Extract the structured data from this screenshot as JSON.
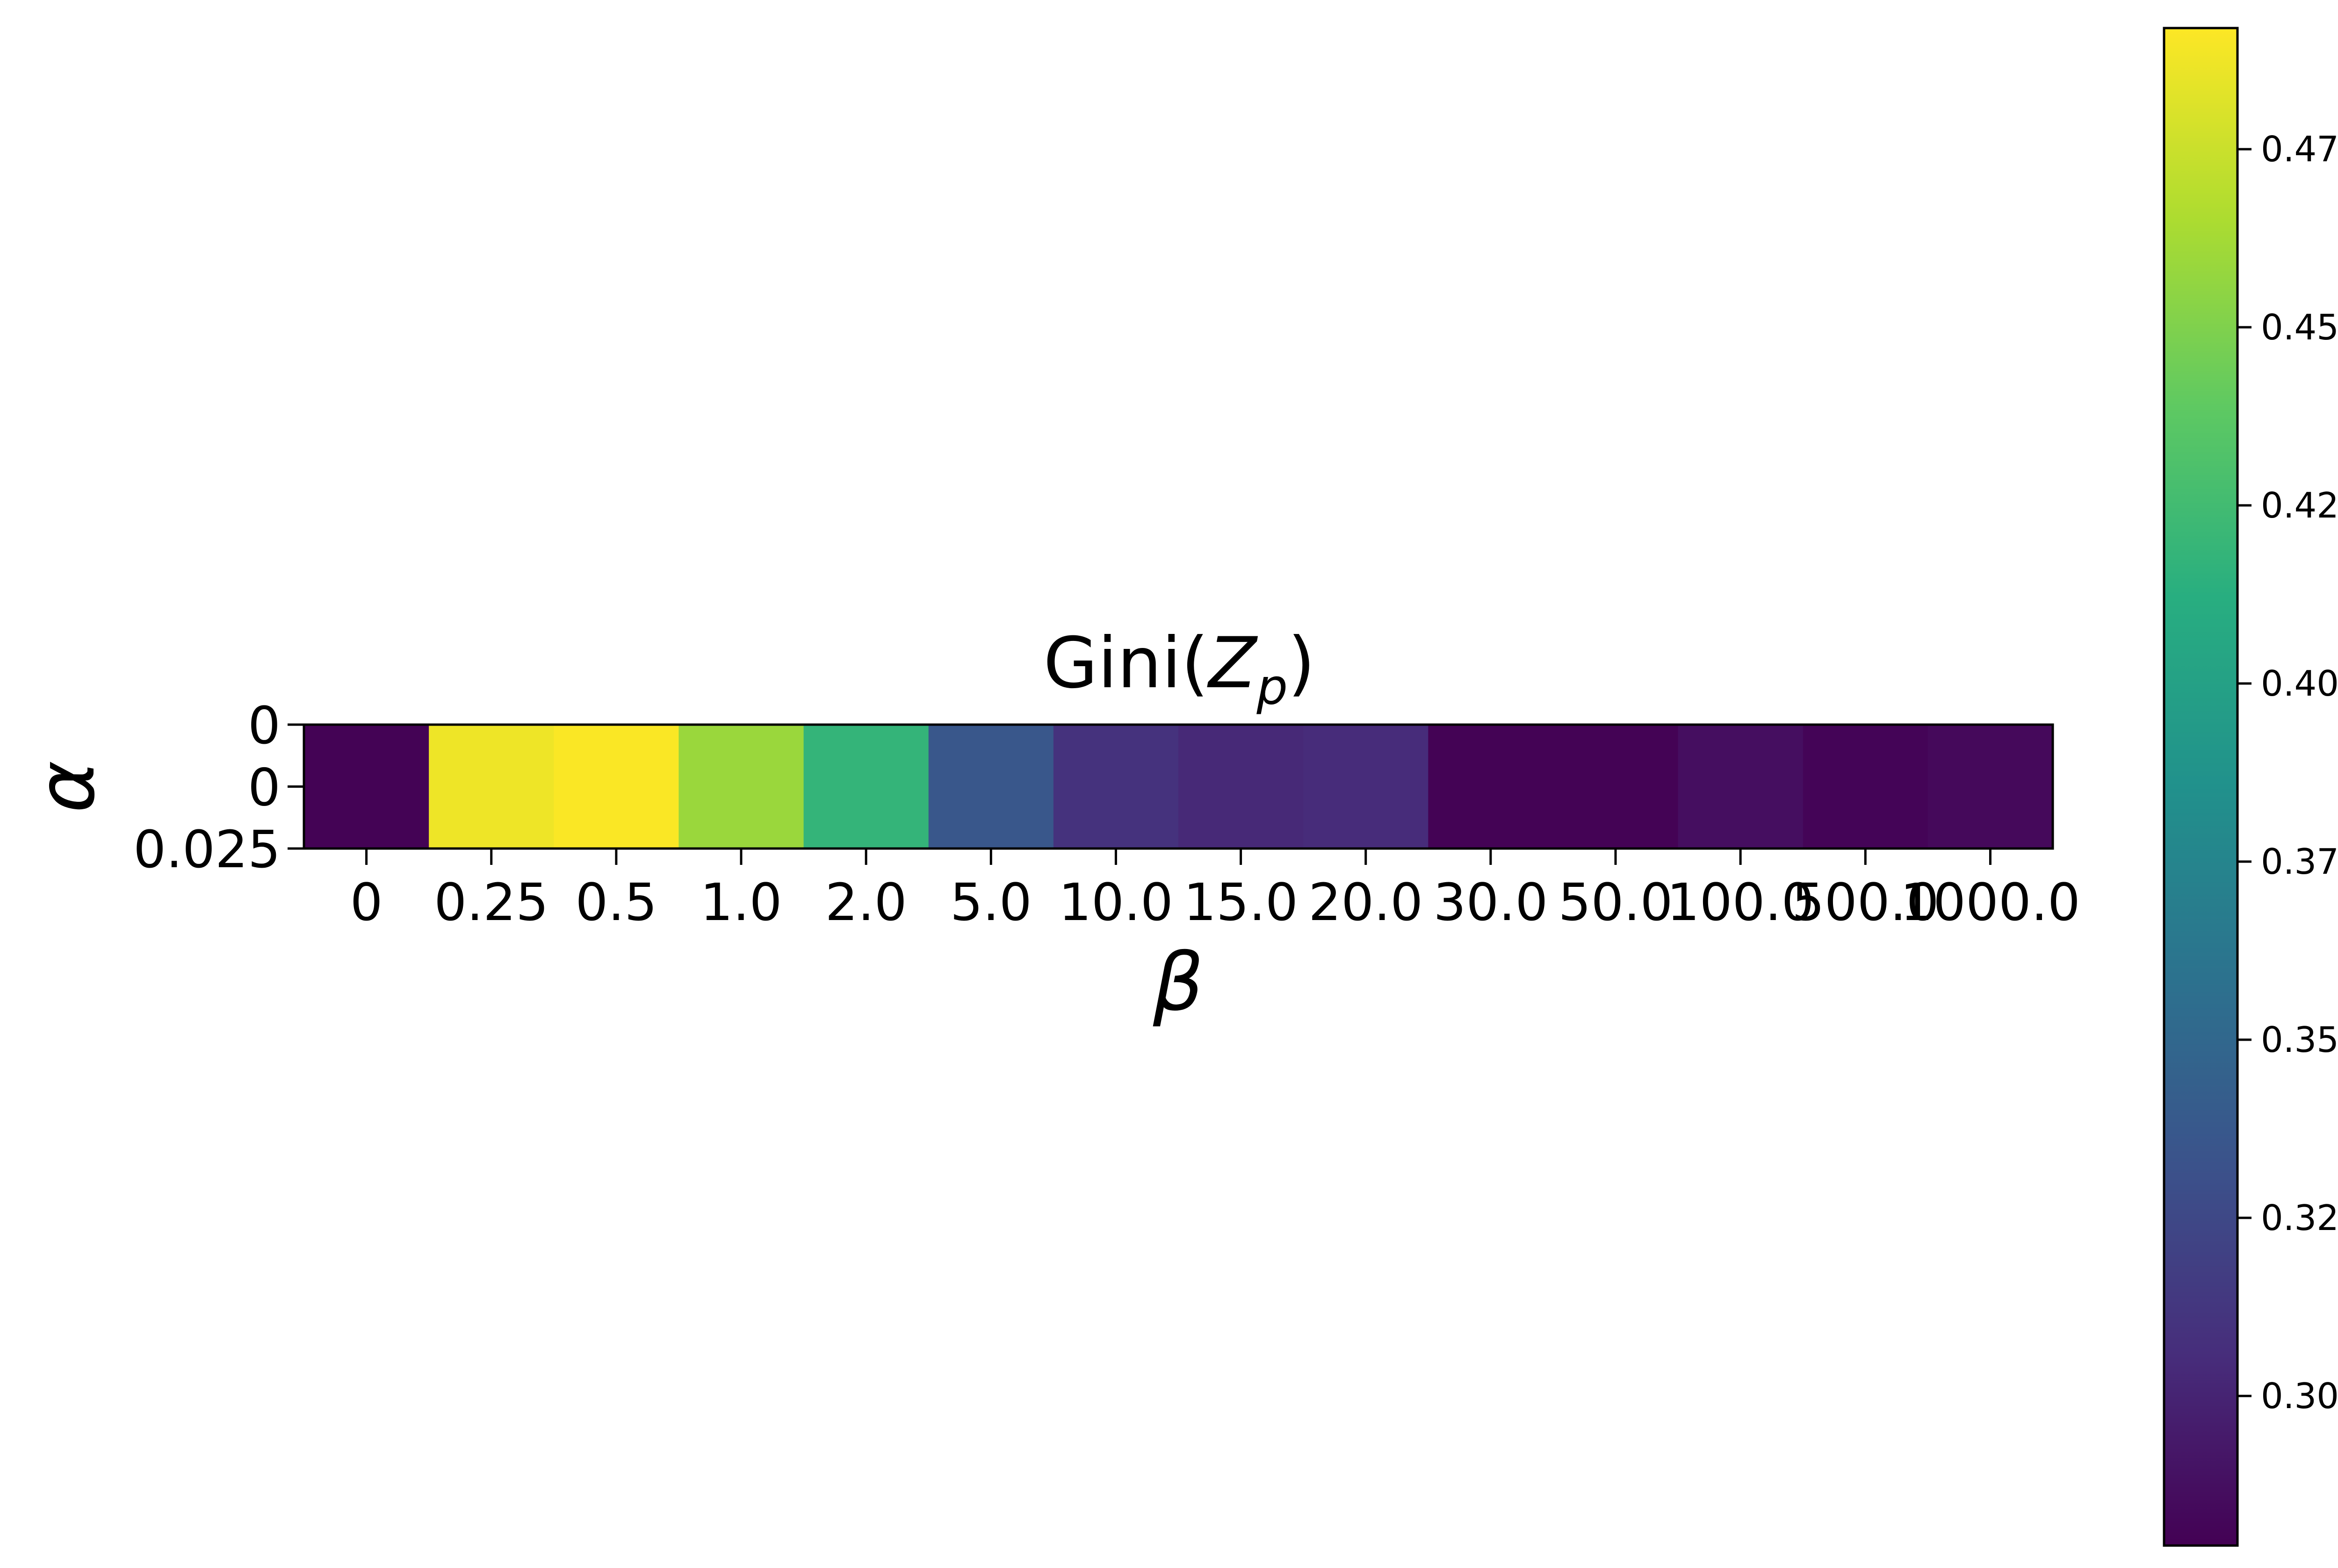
{
  "chart_data": {
    "type": "heatmap",
    "title_prefix": "Gini(",
    "title_var": "Z",
    "title_sub": "p",
    "title_suffix": ")",
    "xlabel": "β",
    "ylabel": "α",
    "x_categories": [
      "0",
      "0.25",
      "0.5",
      "1.0",
      "2.0",
      "5.0",
      "10.0",
      "15.0",
      "20.0",
      "30.0",
      "50.0",
      "100.0",
      "500.0",
      "1000.0"
    ],
    "y_tick_labels": [
      "0",
      "0",
      "0.025"
    ],
    "values": [
      [
        0.28,
        0.487,
        0.491,
        0.459,
        0.418,
        0.336,
        0.309,
        0.303,
        0.305,
        0.28,
        0.28,
        0.287,
        0.281,
        0.284
      ]
    ],
    "colorscale": "viridis",
    "color_range": [
      0.279,
      0.492
    ],
    "colorbar_ticks": [
      0.3,
      0.325,
      0.35,
      0.375,
      0.4,
      0.425,
      0.45,
      0.475
    ],
    "colorbar_tick_labels": [
      "0.300",
      "0.325",
      "0.350",
      "0.375",
      "0.400",
      "0.425",
      "0.450",
      "0.475"
    ],
    "colorbar_position": "right"
  }
}
